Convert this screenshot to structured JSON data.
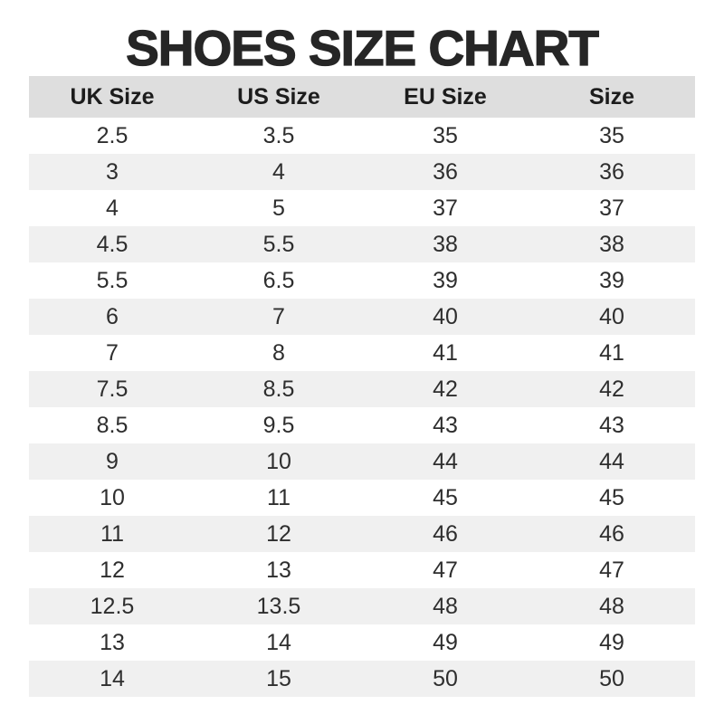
{
  "title": "SHOES SIZE CHART",
  "chart_data": {
    "type": "table",
    "title": "SHOES SIZE CHART",
    "columns": [
      "UK Size",
      "US Size",
      "EU Size",
      "Size"
    ],
    "rows": [
      [
        "2.5",
        "3.5",
        "35",
        "35"
      ],
      [
        "3",
        "4",
        "36",
        "36"
      ],
      [
        "4",
        "5",
        "37",
        "37"
      ],
      [
        "4.5",
        "5.5",
        "38",
        "38"
      ],
      [
        "5.5",
        "6.5",
        "39",
        "39"
      ],
      [
        "6",
        "7",
        "40",
        "40"
      ],
      [
        "7",
        "8",
        "41",
        "41"
      ],
      [
        "7.5",
        "8.5",
        "42",
        "42"
      ],
      [
        "8.5",
        "9.5",
        "43",
        "43"
      ],
      [
        "9",
        "10",
        "44",
        "44"
      ],
      [
        "10",
        "11",
        "45",
        "45"
      ],
      [
        "11",
        "12",
        "46",
        "46"
      ],
      [
        "12",
        "13",
        "47",
        "47"
      ],
      [
        "12.5",
        "13.5",
        "48",
        "48"
      ],
      [
        "13",
        "14",
        "49",
        "49"
      ],
      [
        "14",
        "15",
        "50",
        "50"
      ]
    ],
    "layout": {
      "zebra_striping": true,
      "striped_rows": "even",
      "header_band": true
    }
  },
  "colors": {
    "title_text": "#262626",
    "header_bg": "#dedede",
    "header_text": "#1c1c1c",
    "row_alt_bg": "#f0f0f0",
    "row_bg": "#ffffff",
    "cell_text": "#2e2e2e"
  }
}
